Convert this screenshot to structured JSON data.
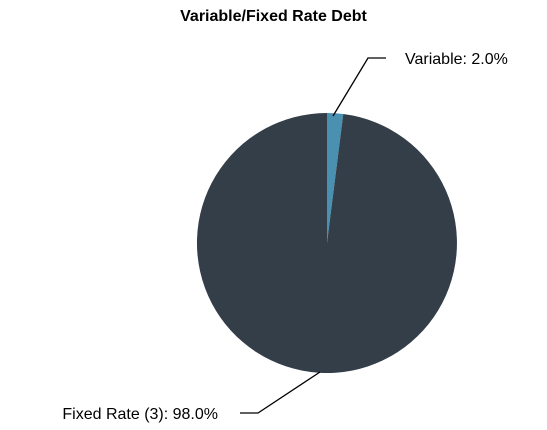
{
  "chart_data": {
    "type": "pie",
    "title": "Variable/Fixed Rate Debt",
    "slices": [
      {
        "label": "Variable",
        "value": 2.0,
        "display": "Variable: 2.0%",
        "color": "#4a90b0"
      },
      {
        "label": "Fixed Rate (3)",
        "value": 98.0,
        "display": "Fixed Rate (3): 98.0%",
        "color": "#333e48"
      }
    ],
    "start_angle_deg": 0,
    "direction": "clockwise",
    "labels": "outside with leader lines",
    "legend": "none"
  }
}
